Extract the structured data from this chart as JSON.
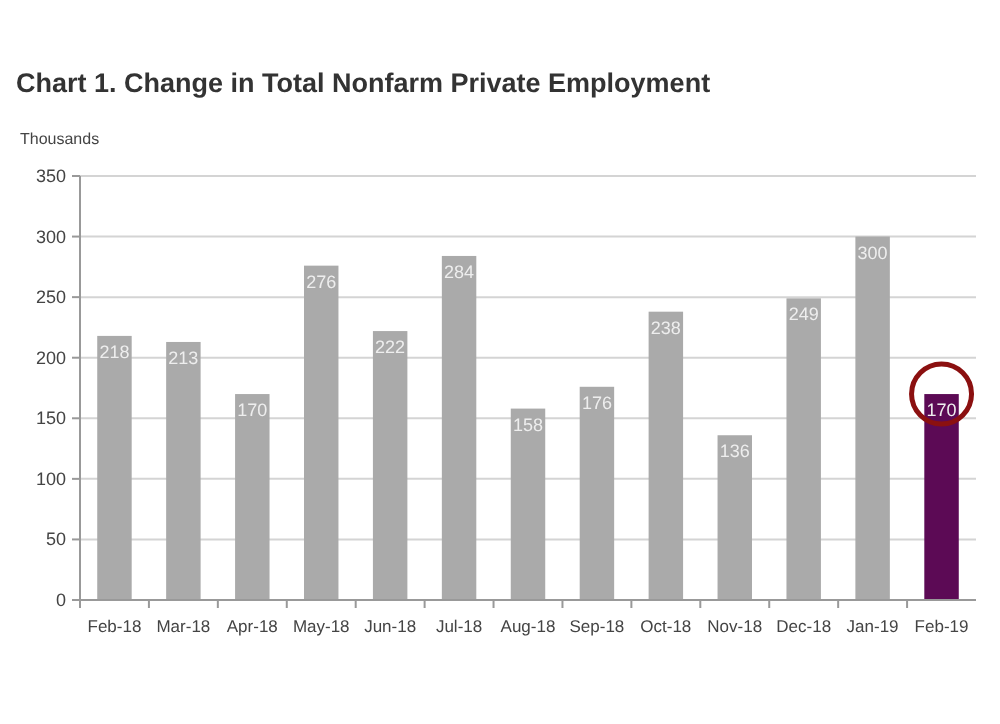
{
  "chart_data": {
    "type": "bar",
    "title": "Chart 1. Change in Total Nonfarm Private Employment",
    "ylabel": "Thousands",
    "categories": [
      "Feb-18",
      "Mar-18",
      "Apr-18",
      "May-18",
      "Jun-18",
      "Jul-18",
      "Aug-18",
      "Sep-18",
      "Oct-18",
      "Nov-18",
      "Dec-18",
      "Jan-19",
      "Feb-19"
    ],
    "values": [
      218,
      213,
      170,
      276,
      222,
      284,
      158,
      176,
      238,
      136,
      249,
      300,
      170
    ],
    "colors": [
      "#aaaaaa",
      "#aaaaaa",
      "#aaaaaa",
      "#aaaaaa",
      "#aaaaaa",
      "#aaaaaa",
      "#aaaaaa",
      "#aaaaaa",
      "#aaaaaa",
      "#aaaaaa",
      "#aaaaaa",
      "#aaaaaa",
      "#5c0a55"
    ],
    "ylim": [
      0,
      350
    ],
    "yticks": [
      0,
      50,
      100,
      150,
      200,
      250,
      300,
      350
    ],
    "grid": "y",
    "data_labels": true
  }
}
